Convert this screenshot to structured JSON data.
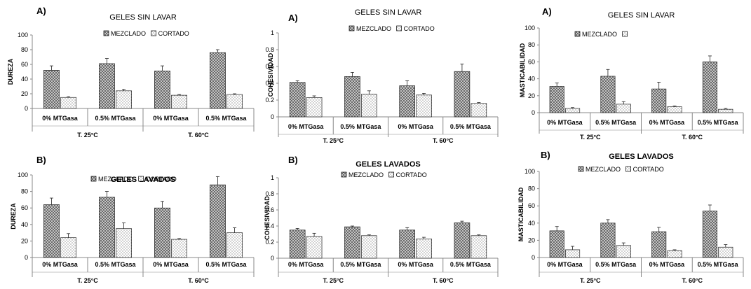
{
  "chart_data": [
    {
      "type": "bar",
      "panel_label": "A)",
      "title": "GELES SIN LAVAR",
      "ylabel": "DUREZA",
      "ylim": [
        0,
        100
      ],
      "yticks": [
        "0",
        "20",
        "40",
        "60",
        "80",
        "100"
      ],
      "categories": [
        "0% MTGasa",
        "0.5% MTGasa",
        "0% MTGasa",
        "0.5% MTGasa"
      ],
      "groups": [
        "T. 25°C",
        "T. 60°C"
      ],
      "legend_position": "top",
      "series": [
        {
          "name": "MEZCLADO",
          "values": [
            52,
            61,
            51,
            76
          ],
          "errors": [
            6,
            7,
            7,
            4
          ]
        },
        {
          "name": "CORTADO",
          "values": [
            15,
            24,
            18,
            19
          ],
          "errors": [
            1,
            2,
            1,
            1
          ]
        }
      ]
    },
    {
      "type": "bar",
      "panel_label": "A)",
      "title": "GELES SIN LAVAR",
      "ylabel": "COHESIVIDAD",
      "ylim": [
        0,
        1
      ],
      "yticks": [
        "0",
        "0.2",
        "0.4",
        "0.6",
        "0.8",
        "1"
      ],
      "categories": [
        "0% MTGasa",
        "0.5% MTGasa",
        "0% MTGasa",
        "0.5% MTGasa"
      ],
      "groups": [
        "T. 25°C",
        "T. 60°C"
      ],
      "legend_position": "top",
      "series": [
        {
          "name": "MEZCLADO",
          "values": [
            0.41,
            0.48,
            0.37,
            0.54
          ],
          "errors": [
            0.02,
            0.05,
            0.06,
            0.09
          ]
        },
        {
          "name": "CORTADO",
          "values": [
            0.23,
            0.27,
            0.26,
            0.16
          ],
          "errors": [
            0.02,
            0.04,
            0.02,
            0.01
          ]
        }
      ]
    },
    {
      "type": "bar",
      "panel_label": "A)",
      "title": "GELES SIN LAVAR",
      "ylabel": "MASTICABILIDAD",
      "ylim": [
        0,
        100
      ],
      "yticks": [
        "0",
        "20",
        "40",
        "60",
        "80",
        "100"
      ],
      "categories": [
        "0% MTGasa",
        "0.5% MTGasa",
        "0% MTGasa",
        "0.5% MTGasa"
      ],
      "groups": [
        "T. 25°C",
        "T. 60°C"
      ],
      "legend_position": "top",
      "series": [
        {
          "name": "MEZCLADO",
          "values": [
            31,
            43,
            28,
            60
          ],
          "errors": [
            4,
            8,
            8,
            7
          ]
        },
        {
          "name": "",
          "values": [
            5,
            10,
            7,
            4
          ],
          "errors": [
            1,
            3,
            1,
            1
          ]
        }
      ]
    },
    {
      "type": "bar",
      "panel_label": "B)",
      "title": "GELES LAVADOS",
      "ylabel": "DUREZA",
      "ylim": [
        0,
        100
      ],
      "yticks": [
        "0",
        "20",
        "40",
        "60",
        "80",
        "100"
      ],
      "categories": [
        "0% MTGasa",
        "0.5% MTGasa",
        "0% MTGasa",
        "0.5% MTGasa"
      ],
      "groups": [
        "T. 25°C",
        "T. 60°C"
      ],
      "legend_position": "top",
      "series": [
        {
          "name": "MEZCLADO",
          "values": [
            64,
            73,
            60,
            88
          ],
          "errors": [
            8,
            7,
            8,
            10
          ]
        },
        {
          "name": "CORTADO",
          "values": [
            24,
            35,
            22,
            30
          ],
          "errors": [
            5,
            7,
            1,
            6
          ]
        }
      ]
    },
    {
      "type": "bar",
      "panel_label": "B)",
      "title": "GELES LAVADOS",
      "ylabel": "COHESIVIDAD",
      "ylim": [
        0,
        1
      ],
      "yticks": [
        "0",
        "0.2",
        "0.4",
        "0.6",
        "0.8",
        "1"
      ],
      "categories": [
        "0% MTGasa",
        "0.5% MTGasa",
        "0% MTGasa",
        "0.5% MTGasa"
      ],
      "groups": [
        "T. 25°C",
        "T. 60°C"
      ],
      "legend_position": "top",
      "series": [
        {
          "name": "MEZCLADO",
          "values": [
            0.35,
            0.39,
            0.35,
            0.44
          ],
          "errors": [
            0.02,
            0.01,
            0.03,
            0.02
          ]
        },
        {
          "name": "CORTADO",
          "values": [
            0.27,
            0.28,
            0.24,
            0.28
          ],
          "errors": [
            0.04,
            0.01,
            0.02,
            0.01
          ]
        }
      ]
    },
    {
      "type": "bar",
      "panel_label": "B)",
      "title": "GELES LAVADOS",
      "ylabel": "MASTICABILIDAD",
      "ylim": [
        0,
        100
      ],
      "yticks": [
        "0",
        "20",
        "40",
        "60",
        "80",
        "100"
      ],
      "categories": [
        "0% MTGasa",
        "0.5% MTGasa",
        "0% MTGasa",
        "0.5% MTGasa"
      ],
      "groups": [
        "T. 25°C",
        "T. 60°C"
      ],
      "legend_position": "top",
      "series": [
        {
          "name": "MEZCLADO",
          "values": [
            31,
            40,
            30,
            54
          ],
          "errors": [
            5,
            4,
            5,
            7
          ]
        },
        {
          "name": "CORTADO",
          "values": [
            9,
            14,
            8,
            12
          ],
          "errors": [
            4,
            3,
            1,
            3
          ]
        }
      ]
    }
  ]
}
